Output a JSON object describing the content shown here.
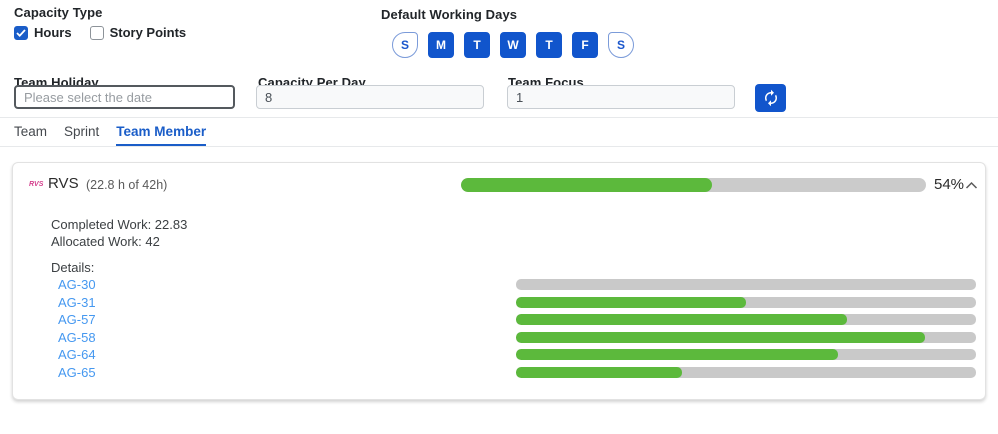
{
  "capacity_type": {
    "label": "Capacity Type",
    "options": [
      {
        "label": "Hours",
        "checked": true
      },
      {
        "label": "Story Points",
        "checked": false
      }
    ]
  },
  "working_days": {
    "label": "Default Working Days",
    "days": [
      {
        "label": "S",
        "selected": false
      },
      {
        "label": "M",
        "selected": true
      },
      {
        "label": "T",
        "selected": true
      },
      {
        "label": "W",
        "selected": true
      },
      {
        "label": "T",
        "selected": true
      },
      {
        "label": "F",
        "selected": true
      },
      {
        "label": "S",
        "selected": false
      }
    ]
  },
  "fields": {
    "team_holiday": {
      "label": "Team Holiday",
      "placeholder": "Please select the date",
      "value": ""
    },
    "capacity_per_day": {
      "label": "Capacity Per Day",
      "value": "8"
    },
    "team_focus": {
      "label": "Team Focus",
      "value": "1"
    }
  },
  "tabs": [
    {
      "label": "Team",
      "active": false
    },
    {
      "label": "Sprint",
      "active": false
    },
    {
      "label": "Team Member",
      "active": true
    }
  ],
  "member_card": {
    "avatar_text": "RVS",
    "name": "RVS",
    "capacity_summary": "(22.8 h of 42h)",
    "progress_percent": 54,
    "progress_label": "54%",
    "completed_work": "Completed Work: 22.83",
    "allocated_work": "Allocated Work: 42",
    "details_label": "Details:",
    "details": [
      {
        "id": "AG-30",
        "percent": 0
      },
      {
        "id": "AG-31",
        "percent": 50
      },
      {
        "id": "AG-57",
        "percent": 72
      },
      {
        "id": "AG-58",
        "percent": 89
      },
      {
        "id": "AG-64",
        "percent": 70
      },
      {
        "id": "AG-65",
        "percent": 36
      }
    ]
  },
  "colors": {
    "accent_blue": "#1155cc",
    "tab_blue": "#1a5dc8",
    "link_blue": "#4598f0",
    "progress_green": "#5cb93c",
    "track_gray": "#cbcbcb"
  }
}
